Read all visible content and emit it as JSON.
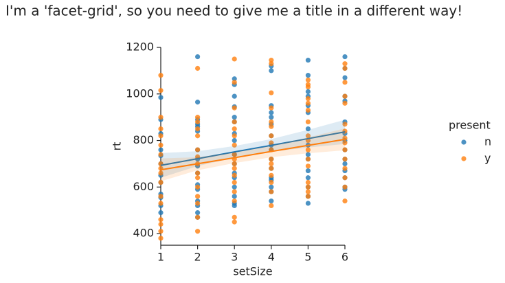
{
  "chart_data": {
    "type": "scatter",
    "title": "I'm a 'facet-grid', so you need to give me a title in a different way!",
    "x_label": "setSize",
    "y_label": "rt",
    "legend_title": "present",
    "xlim": [
      1,
      6
    ],
    "ylim": [
      350,
      1200
    ],
    "xticks": [
      1,
      2,
      3,
      4,
      5,
      6
    ],
    "yticks": [
      400,
      600,
      800,
      1000,
      1200
    ],
    "series": [
      {
        "name": "n",
        "color": "#1f77b4",
        "x": [
          1,
          1,
          1,
          1,
          1,
          1,
          1,
          1,
          1,
          1,
          1,
          1,
          2,
          2,
          2,
          2,
          2,
          2,
          2,
          2,
          2,
          2,
          2,
          2,
          2,
          2,
          2,
          2,
          3,
          3,
          3,
          3,
          3,
          3,
          3,
          3,
          3,
          3,
          3,
          3,
          3,
          3,
          3,
          3,
          4,
          4,
          4,
          4,
          4,
          4,
          4,
          4,
          4,
          4,
          4,
          4,
          4,
          4,
          4,
          4,
          5,
          5,
          5,
          5,
          5,
          5,
          5,
          5,
          5,
          5,
          5,
          5,
          5,
          5,
          5,
          6,
          6,
          6,
          6,
          6,
          6,
          6,
          6,
          6,
          6,
          6,
          6,
          6,
          6,
          6
        ],
        "values": [
          985,
          890,
          830,
          760,
          735,
          700,
          650,
          620,
          570,
          555,
          520,
          490,
          1160,
          965,
          890,
          870,
          860,
          840,
          760,
          720,
          690,
          660,
          610,
          590,
          540,
          520,
          490,
          470,
          1065,
          1040,
          990,
          945,
          900,
          880,
          830,
          800,
          740,
          700,
          660,
          640,
          600,
          560,
          530,
          520,
          1120,
          1100,
          950,
          920,
          900,
          870,
          820,
          780,
          760,
          720,
          680,
          640,
          630,
          600,
          580,
          540,
          1145,
          1080,
          1010,
          990,
          950,
          920,
          850,
          780,
          740,
          720,
          670,
          640,
          600,
          560,
          530,
          1160,
          1110,
          1070,
          990,
          970,
          880,
          830,
          800,
          760,
          720,
          700,
          670,
          640,
          600,
          590
        ],
        "fit": {
          "x": [
            1,
            2,
            3,
            4,
            5,
            6
          ],
          "values": [
            693,
            722,
            751,
            779,
            808,
            837
          ],
          "ci_low": [
            640,
            690,
            726,
            752,
            770,
            785
          ],
          "ci_high": [
            746,
            754,
            776,
            806,
            846,
            889
          ]
        }
      },
      {
        "name": "y",
        "color": "#ff7f0e",
        "x": [
          1,
          1,
          1,
          1,
          1,
          1,
          1,
          1,
          1,
          1,
          1,
          1,
          1,
          1,
          1,
          1,
          1,
          2,
          2,
          2,
          2,
          2,
          2,
          2,
          2,
          2,
          2,
          2,
          2,
          2,
          2,
          2,
          3,
          3,
          3,
          3,
          3,
          3,
          3,
          3,
          3,
          3,
          3,
          3,
          3,
          3,
          3,
          3,
          3,
          4,
          4,
          4,
          4,
          4,
          4,
          4,
          4,
          4,
          4,
          4,
          4,
          4,
          4,
          4,
          4,
          5,
          5,
          5,
          5,
          5,
          5,
          5,
          5,
          5,
          5,
          5,
          5,
          5,
          5,
          5,
          5,
          6,
          6,
          6,
          6,
          6,
          6,
          6,
          6,
          6,
          6,
          6,
          6,
          6,
          6,
          6
        ],
        "values": [
          1080,
          1015,
          900,
          850,
          820,
          780,
          740,
          700,
          680,
          660,
          620,
          560,
          530,
          460,
          440,
          410,
          380,
          1110,
          900,
          880,
          850,
          820,
          760,
          730,
          700,
          660,
          640,
          600,
          560,
          530,
          470,
          410,
          1150,
          1050,
          940,
          880,
          850,
          820,
          780,
          740,
          720,
          700,
          680,
          650,
          620,
          580,
          540,
          470,
          450,
          1145,
          1130,
          1005,
          940,
          880,
          860,
          820,
          790,
          760,
          720,
          700,
          680,
          650,
          620,
          580,
          520,
          1060,
          1040,
          1030,
          980,
          960,
          930,
          880,
          820,
          800,
          760,
          720,
          690,
          620,
          600,
          580,
          560,
          1130,
          1110,
          1050,
          990,
          960,
          870,
          840,
          810,
          790,
          760,
          720,
          680,
          640,
          600,
          540
        ],
        "fit": {
          "x": [
            1,
            2,
            3,
            4,
            5,
            6
          ],
          "values": [
            674,
            700,
            726,
            753,
            779,
            805
          ],
          "ci_low": [
            625,
            672,
            703,
            728,
            745,
            758
          ],
          "ci_high": [
            723,
            728,
            749,
            778,
            813,
            852
          ]
        }
      }
    ]
  }
}
